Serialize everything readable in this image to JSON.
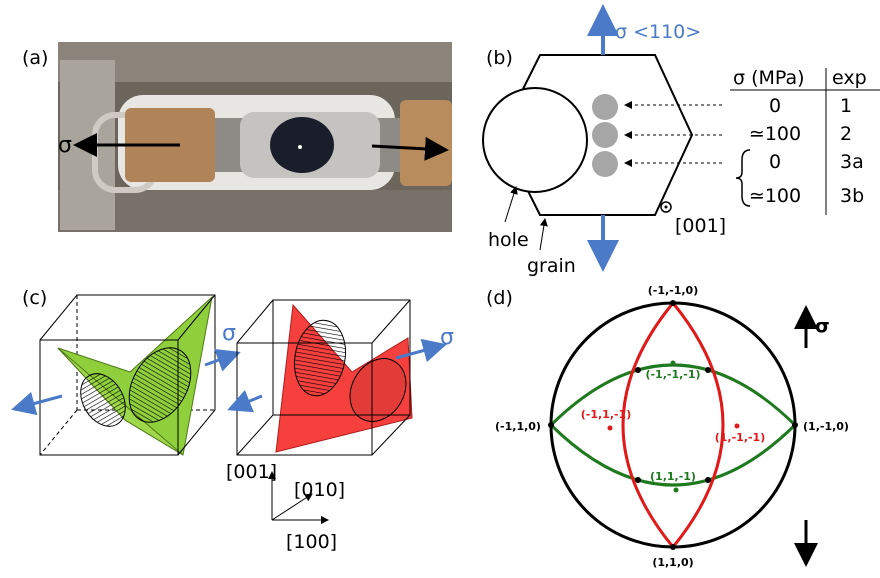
{
  "panel_a": {
    "label": "(a)",
    "sigma": "σ"
  },
  "panel_b": {
    "label": "(b)",
    "stress_label": "σ <110>",
    "hole": "hole",
    "grain": "grain",
    "direction": "[001]",
    "table": {
      "header": [
        "σ (MPa)",
        "exp"
      ],
      "rows": [
        [
          "0",
          "1"
        ],
        [
          "≃100",
          "2"
        ],
        [
          "0",
          "3a"
        ],
        [
          "≃100",
          "3b"
        ]
      ]
    }
  },
  "panel_c": {
    "label": "(c)",
    "sigma_left": "σ",
    "sigma_right": "σ",
    "axes": [
      "[001]",
      "[010]",
      "[100]"
    ]
  },
  "panel_d": {
    "label": "(d)",
    "sigma": "σ",
    "poles": [
      "(-1,-1,0)",
      "(1,1,0)",
      "(-1,1,0)",
      "(1,-1,0)"
    ],
    "points": [
      "(-1,-1,-1)",
      "(-1,1,-1)",
      "(1,-1,-1)",
      "(1,1,-1)"
    ]
  }
}
